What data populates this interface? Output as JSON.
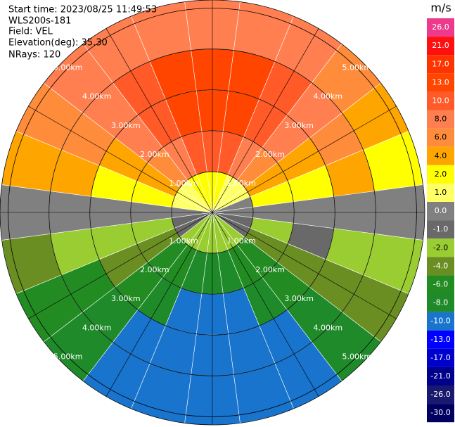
{
  "chart_data": {
    "type": "ppi",
    "info": [
      "Start time: 2023/08/25 11:49:53",
      "WLS200s-181",
      "Field: VEL",
      "Elevation(deg): 35.30",
      "NRays: 120"
    ],
    "colorbar_title": "m/s",
    "rlim": [
      0,
      5.2
    ],
    "rticks": [
      {
        "value": 1,
        "label": "1.00km"
      },
      {
        "value": 2,
        "label": "2.00km"
      },
      {
        "value": 3,
        "label": "3.00km"
      },
      {
        "value": 4,
        "label": "4.00km"
      },
      {
        "value": 5,
        "label": "5.00km"
      }
    ],
    "azimuths": [
      0,
      15,
      30,
      45,
      60,
      75,
      90,
      105,
      120,
      135,
      150,
      165,
      180,
      195,
      210,
      225,
      240,
      255,
      270,
      285,
      300,
      315,
      330,
      345
    ],
    "range_bins": [
      0,
      1,
      2,
      3,
      4,
      5.2
    ],
    "values": [
      [
        2,
        10,
        13,
        13,
        8
      ],
      [
        2,
        10,
        13,
        13,
        8
      ],
      [
        1,
        8,
        10,
        10,
        8
      ],
      [
        1,
        6,
        8,
        8,
        6
      ],
      [
        1,
        4,
        4,
        6,
        4
      ],
      [
        0,
        2,
        2,
        4,
        2
      ],
      [
        0,
        0,
        0,
        0,
        0
      ],
      [
        -1,
        -2,
        -1,
        -2,
        -2
      ],
      [
        -1,
        -4,
        -4,
        -4,
        -4
      ],
      [
        -2,
        -6,
        -6,
        -8,
        -8
      ],
      [
        -2,
        -6,
        -8,
        -10,
        -10
      ],
      [
        -2,
        -8,
        -10,
        -10,
        -10
      ],
      [
        -2,
        -8,
        -10,
        -10,
        -10
      ],
      [
        -2,
        -8,
        -10,
        -10,
        -10
      ],
      [
        -2,
        -6,
        -8,
        -10,
        -10
      ],
      [
        -2,
        -6,
        -6,
        -8,
        -8
      ],
      [
        -1,
        -4,
        -4,
        -6,
        -6
      ],
      [
        -1,
        -2,
        -2,
        -2,
        -4
      ],
      [
        0,
        0,
        0,
        0,
        0
      ],
      [
        1,
        2,
        2,
        4,
        4
      ],
      [
        1,
        4,
        4,
        6,
        6
      ],
      [
        1,
        6,
        8,
        8,
        8
      ],
      [
        2,
        8,
        10,
        10,
        8
      ],
      [
        2,
        10,
        13,
        13,
        8
      ]
    ],
    "levels": [
      {
        "value": 26,
        "label": "26.0"
      },
      {
        "value": 21,
        "label": "21.0"
      },
      {
        "value": 17,
        "label": "17.0"
      },
      {
        "value": 13,
        "label": "13.0"
      },
      {
        "value": 10,
        "label": "10.0"
      },
      {
        "value": 8,
        "label": "8.0"
      },
      {
        "value": 6,
        "label": "6.0"
      },
      {
        "value": 4,
        "label": "4.0"
      },
      {
        "value": 2,
        "label": "2.0"
      },
      {
        "value": 1,
        "label": "1.0"
      },
      {
        "value": 0,
        "label": "0.0"
      },
      {
        "value": -1,
        "label": "-1.0"
      },
      {
        "value": -2,
        "label": "-2.0"
      },
      {
        "value": -4,
        "label": "-4.0"
      },
      {
        "value": -6,
        "label": "-6.0"
      },
      {
        "value": -8,
        "label": "-8.0"
      },
      {
        "value": -10,
        "label": "-10.0"
      },
      {
        "value": -13,
        "label": "-13.0"
      },
      {
        "value": -17,
        "label": "-17.0"
      },
      {
        "value": -21,
        "label": "-21.0"
      },
      {
        "value": -26,
        "label": "-26.0"
      },
      {
        "value": -30,
        "label": "-30.0"
      }
    ],
    "colors": [
      "#ee3a8c",
      "#ff1010",
      "#ff3300",
      "#ff4500",
      "#ff5a28",
      "#ff7f50",
      "#ff8c3a",
      "#ffa500",
      "#ffff00",
      "#ffff66",
      "#808080",
      "#696969",
      "#9acd32",
      "#6b8e23",
      "#228b22",
      "#1f8a2a",
      "#1874cd",
      "#0000ff",
      "#0000cd",
      "#00008b",
      "#191970",
      "#000060"
    ]
  }
}
